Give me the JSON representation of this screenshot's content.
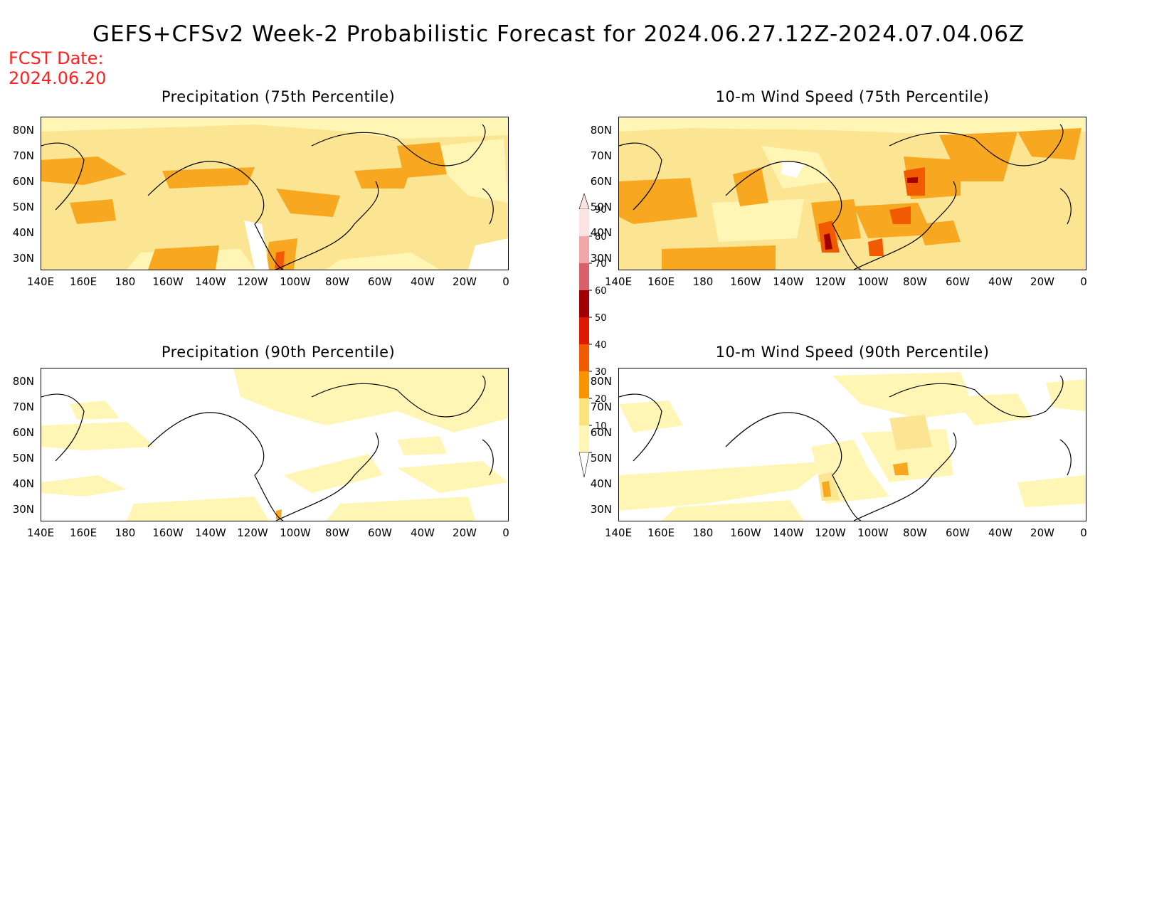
{
  "title": "GEFS+CFSv2 Week-2 Probabilistic Forecast for 2024.06.27.12Z-2024.07.04.06Z",
  "fcst_label": "FCST Date:",
  "fcst_date": "2024.06.20",
  "lat_ticks": [
    "80N",
    "70N",
    "60N",
    "50N",
    "40N",
    "30N"
  ],
  "lon_ticks": [
    "140E",
    "160E",
    "180",
    "160W",
    "140W",
    "120W",
    "100W",
    "80W",
    "60W",
    "40W",
    "20W",
    "0"
  ],
  "panels": [
    {
      "title": "Precipitation (75th Percentile)"
    },
    {
      "title": "10-m Wind Speed (75th Percentile)"
    },
    {
      "title": "Precipitation (90th Percentile)"
    },
    {
      "title": "10-m Wind Speed (90th Percentile)"
    }
  ],
  "colorbar": {
    "labels": [
      "90",
      "80",
      "70",
      "60",
      "50",
      "40",
      "30",
      "20",
      "10"
    ],
    "colors": [
      "#fbe3e3",
      "#f2a6aa",
      "#d9616a",
      "#a00000",
      "#dd1a00",
      "#f25a00",
      "#f79400",
      "#fbe27a",
      "#fff6b5"
    ]
  }
}
